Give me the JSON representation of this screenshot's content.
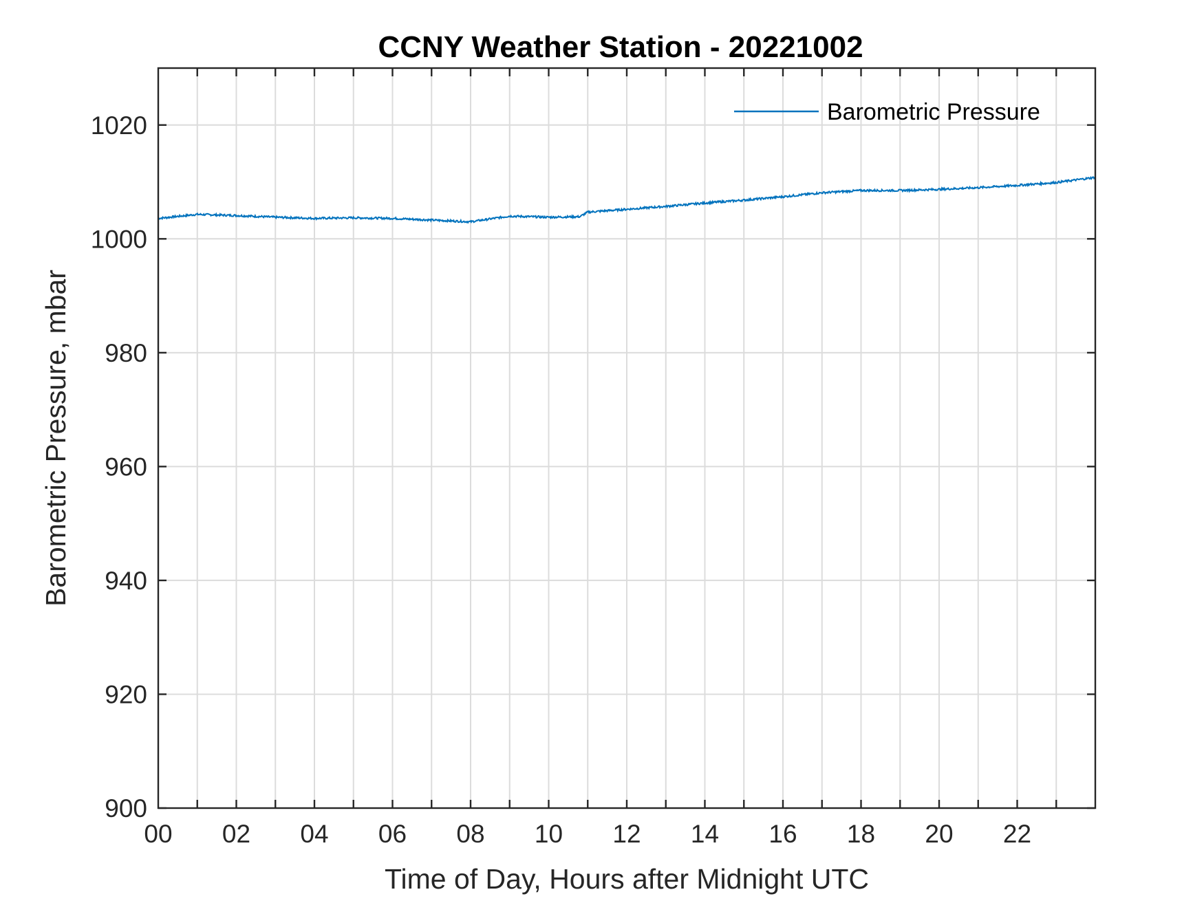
{
  "chart_data": {
    "type": "line",
    "title": "CCNY Weather Station - 20221002",
    "xlabel": "Time of Day, Hours after Midnight UTC",
    "ylabel": "Barometric Pressure, mbar",
    "xlim": [
      0,
      24
    ],
    "ylim": [
      900,
      1030
    ],
    "xticks": [
      0,
      2,
      4,
      6,
      8,
      10,
      12,
      14,
      16,
      18,
      20,
      22
    ],
    "xtick_labels": [
      "00",
      "02",
      "04",
      "06",
      "08",
      "10",
      "12",
      "14",
      "16",
      "18",
      "20",
      "22"
    ],
    "yticks": [
      900,
      920,
      940,
      960,
      980,
      1000,
      1020
    ],
    "ytick_labels": [
      "900",
      "920",
      "940",
      "960",
      "980",
      "1000",
      "1020"
    ],
    "grid": true,
    "legend_position": "top-right",
    "series": [
      {
        "name": "Barometric Pressure",
        "color": "#0072BD",
        "x": [
          0,
          1,
          2,
          3,
          4,
          5,
          6,
          7,
          8,
          9,
          10,
          10.8,
          11,
          12,
          13,
          14,
          15,
          16,
          17,
          18,
          19,
          20,
          21,
          22,
          23,
          24
        ],
        "y": [
          1003.6,
          1004.3,
          1004.1,
          1003.8,
          1003.6,
          1003.7,
          1003.6,
          1003.3,
          1003.0,
          1004.0,
          1003.8,
          1003.9,
          1004.7,
          1005.2,
          1005.7,
          1006.3,
          1006.8,
          1007.4,
          1008.1,
          1008.5,
          1008.5,
          1008.7,
          1009.0,
          1009.4,
          1009.9,
          1010.8
        ]
      }
    ]
  }
}
